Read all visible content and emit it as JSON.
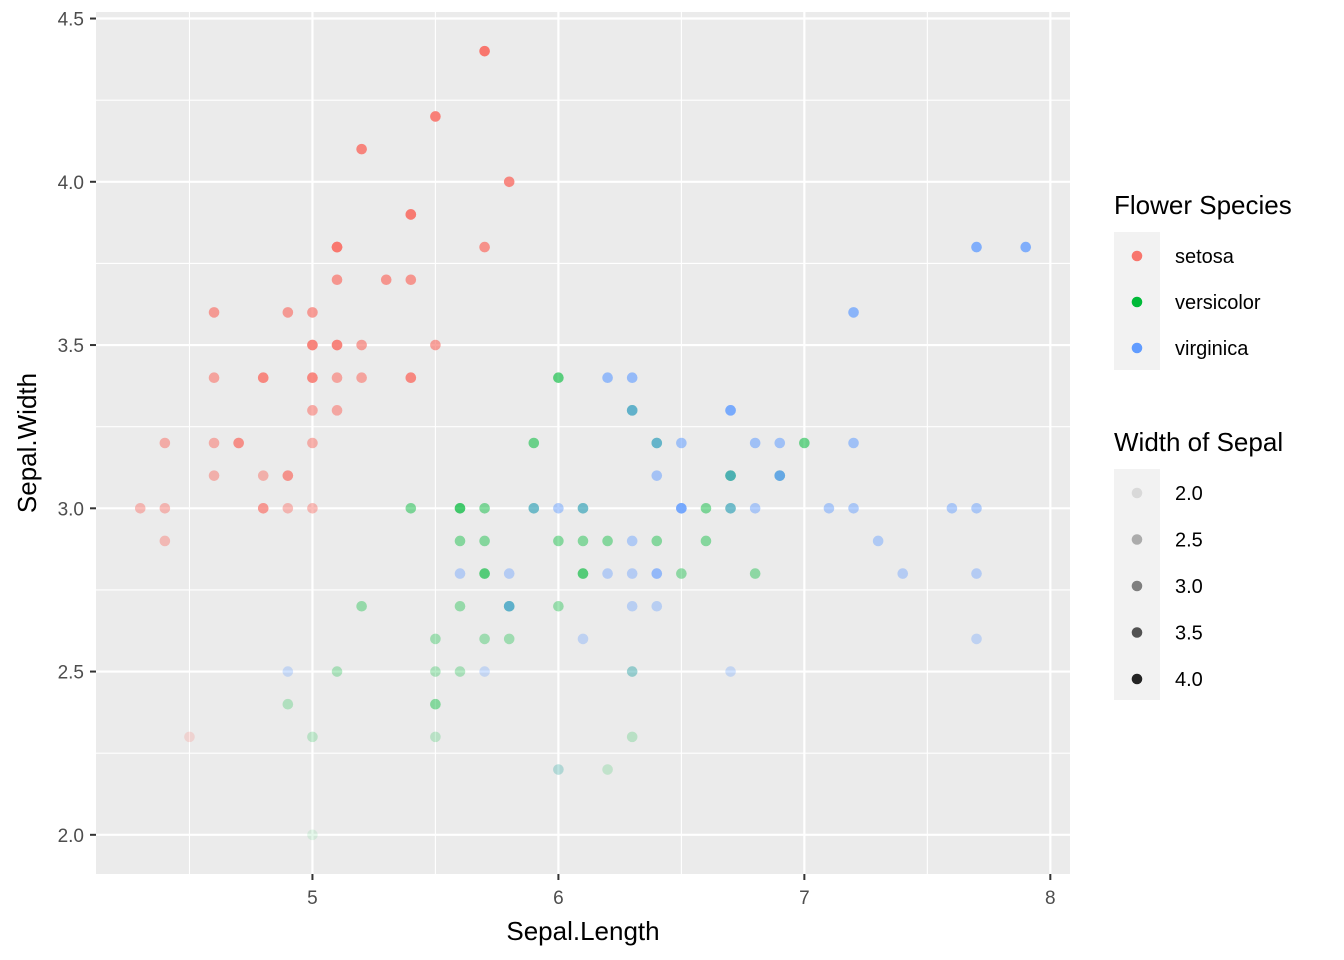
{
  "chart_data": {
    "type": "scatter",
    "title": "",
    "xlabel": "Sepal.Length",
    "ylabel": "Sepal.Width",
    "xlim": [
      4.12,
      8.08
    ],
    "ylim": [
      1.88,
      4.52
    ],
    "x_ticks": [
      5,
      6,
      7,
      8
    ],
    "y_ticks": [
      2.0,
      2.5,
      3.0,
      3.5,
      4.0,
      4.5
    ],
    "x_tick_labels": [
      "5",
      "6",
      "7",
      "8"
    ],
    "y_tick_labels": [
      "2.0",
      "2.5",
      "3.0",
      "3.5",
      "4.0",
      "4.5"
    ],
    "grid": true,
    "legend_position": "right",
    "color_legend": {
      "title": "Flower Species",
      "entries": [
        {
          "label": "setosa",
          "color": "#F8766D"
        },
        {
          "label": "versicolor",
          "color": "#00BA38"
        },
        {
          "label": "virginica",
          "color": "#619CFF"
        }
      ]
    },
    "alpha_legend": {
      "title": "Width of Sepal",
      "entries": [
        "2.0",
        "2.5",
        "3.0",
        "3.5",
        "4.0"
      ],
      "values": [
        2.0,
        2.5,
        3.0,
        3.5,
        4.0
      ]
    },
    "alpha_by": "y",
    "series": [
      {
        "name": "setosa",
        "color": "#F8766D",
        "points": [
          [
            5.1,
            3.5
          ],
          [
            4.9,
            3.0
          ],
          [
            4.7,
            3.2
          ],
          [
            4.6,
            3.1
          ],
          [
            5.0,
            3.6
          ],
          [
            5.4,
            3.9
          ],
          [
            4.6,
            3.4
          ],
          [
            5.0,
            3.4
          ],
          [
            4.4,
            2.9
          ],
          [
            4.9,
            3.1
          ],
          [
            5.4,
            3.7
          ],
          [
            4.8,
            3.4
          ],
          [
            4.8,
            3.0
          ],
          [
            4.3,
            3.0
          ],
          [
            5.8,
            4.0
          ],
          [
            5.7,
            4.4
          ],
          [
            5.4,
            3.9
          ],
          [
            5.1,
            3.5
          ],
          [
            5.7,
            3.8
          ],
          [
            5.1,
            3.8
          ],
          [
            5.4,
            3.4
          ],
          [
            5.1,
            3.7
          ],
          [
            4.6,
            3.6
          ],
          [
            5.1,
            3.3
          ],
          [
            4.8,
            3.4
          ],
          [
            5.0,
            3.0
          ],
          [
            5.0,
            3.4
          ],
          [
            5.2,
            3.5
          ],
          [
            5.2,
            3.4
          ],
          [
            4.7,
            3.2
          ],
          [
            4.8,
            3.1
          ],
          [
            5.4,
            3.4
          ],
          [
            5.2,
            4.1
          ],
          [
            5.5,
            4.2
          ],
          [
            4.9,
            3.1
          ],
          [
            5.0,
            3.2
          ],
          [
            5.5,
            3.5
          ],
          [
            4.9,
            3.6
          ],
          [
            4.4,
            3.0
          ],
          [
            5.1,
            3.4
          ],
          [
            5.0,
            3.5
          ],
          [
            4.5,
            2.3
          ],
          [
            4.4,
            3.2
          ],
          [
            5.0,
            3.5
          ],
          [
            5.1,
            3.8
          ],
          [
            4.8,
            3.0
          ],
          [
            5.1,
            3.8
          ],
          [
            4.6,
            3.2
          ],
          [
            5.3,
            3.7
          ],
          [
            5.0,
            3.3
          ]
        ]
      },
      {
        "name": "versicolor",
        "color": "#00BA38",
        "points": [
          [
            7.0,
            3.2
          ],
          [
            6.4,
            3.2
          ],
          [
            6.9,
            3.1
          ],
          [
            5.5,
            2.3
          ],
          [
            6.5,
            2.8
          ],
          [
            5.7,
            2.8
          ],
          [
            6.3,
            3.3
          ],
          [
            4.9,
            2.4
          ],
          [
            6.6,
            2.9
          ],
          [
            5.2,
            2.7
          ],
          [
            5.0,
            2.0
          ],
          [
            5.9,
            3.0
          ],
          [
            6.0,
            2.2
          ],
          [
            6.1,
            2.9
          ],
          [
            5.6,
            2.9
          ],
          [
            6.7,
            3.1
          ],
          [
            5.6,
            3.0
          ],
          [
            5.8,
            2.7
          ],
          [
            6.2,
            2.2
          ],
          [
            5.6,
            2.5
          ],
          [
            5.9,
            3.2
          ],
          [
            6.1,
            2.8
          ],
          [
            6.3,
            2.5
          ],
          [
            6.1,
            2.8
          ],
          [
            6.4,
            2.9
          ],
          [
            6.6,
            3.0
          ],
          [
            6.8,
            2.8
          ],
          [
            6.7,
            3.0
          ],
          [
            6.0,
            2.9
          ],
          [
            5.7,
            2.6
          ],
          [
            5.5,
            2.4
          ],
          [
            5.5,
            2.4
          ],
          [
            5.8,
            2.7
          ],
          [
            6.0,
            2.7
          ],
          [
            5.4,
            3.0
          ],
          [
            6.0,
            3.4
          ],
          [
            6.7,
            3.1
          ],
          [
            6.3,
            2.3
          ],
          [
            5.6,
            3.0
          ],
          [
            5.5,
            2.5
          ],
          [
            5.5,
            2.6
          ],
          [
            6.1,
            3.0
          ],
          [
            5.8,
            2.6
          ],
          [
            5.0,
            2.3
          ],
          [
            5.6,
            2.7
          ],
          [
            5.7,
            3.0
          ],
          [
            5.7,
            2.9
          ],
          [
            6.2,
            2.9
          ],
          [
            5.1,
            2.5
          ],
          [
            5.7,
            2.8
          ]
        ]
      },
      {
        "name": "virginica",
        "color": "#619CFF",
        "points": [
          [
            6.3,
            3.3
          ],
          [
            5.8,
            2.7
          ],
          [
            7.1,
            3.0
          ],
          [
            6.3,
            2.9
          ],
          [
            6.5,
            3.0
          ],
          [
            7.6,
            3.0
          ],
          [
            4.9,
            2.5
          ],
          [
            7.3,
            2.9
          ],
          [
            6.7,
            2.5
          ],
          [
            7.2,
            3.6
          ],
          [
            6.5,
            3.2
          ],
          [
            6.4,
            2.7
          ],
          [
            6.8,
            3.0
          ],
          [
            5.7,
            2.5
          ],
          [
            5.8,
            2.8
          ],
          [
            6.4,
            3.2
          ],
          [
            6.5,
            3.0
          ],
          [
            7.7,
            3.8
          ],
          [
            7.7,
            2.6
          ],
          [
            6.0,
            2.2
          ],
          [
            6.9,
            3.2
          ],
          [
            5.6,
            2.8
          ],
          [
            7.7,
            2.8
          ],
          [
            6.3,
            2.7
          ],
          [
            6.7,
            3.3
          ],
          [
            7.2,
            3.2
          ],
          [
            6.2,
            2.8
          ],
          [
            6.1,
            3.0
          ],
          [
            6.4,
            2.8
          ],
          [
            7.2,
            3.0
          ],
          [
            7.4,
            2.8
          ],
          [
            7.9,
            3.8
          ],
          [
            6.4,
            2.8
          ],
          [
            6.3,
            2.8
          ],
          [
            6.1,
            2.6
          ],
          [
            7.7,
            3.0
          ],
          [
            6.3,
            3.4
          ],
          [
            6.4,
            3.1
          ],
          [
            6.0,
            3.0
          ],
          [
            6.9,
            3.1
          ],
          [
            6.7,
            3.1
          ],
          [
            6.9,
            3.1
          ],
          [
            5.8,
            2.7
          ],
          [
            6.8,
            3.2
          ],
          [
            6.7,
            3.3
          ],
          [
            6.7,
            3.0
          ],
          [
            6.3,
            2.5
          ],
          [
            6.5,
            3.0
          ],
          [
            6.2,
            3.4
          ],
          [
            5.9,
            3.0
          ]
        ]
      }
    ]
  }
}
